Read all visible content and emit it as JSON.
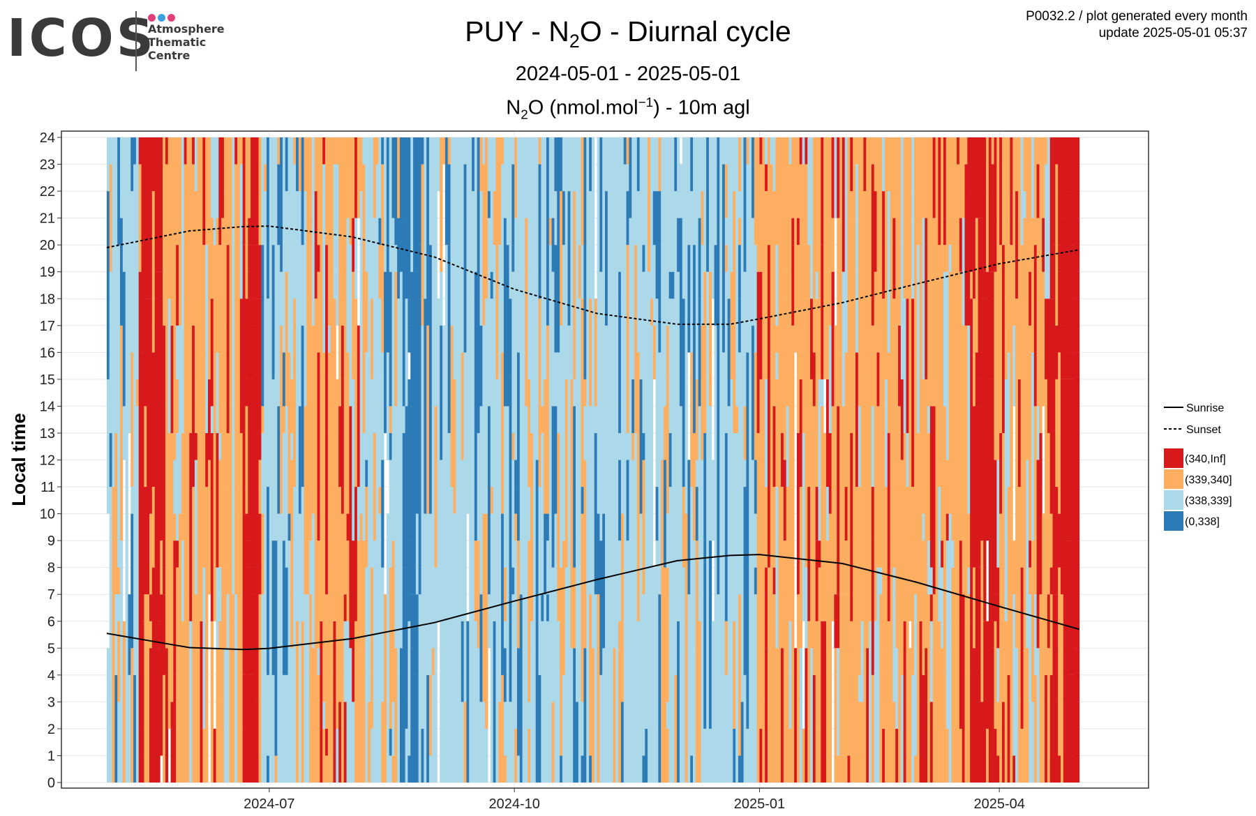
{
  "logo": {
    "text": "ICOS",
    "lines": [
      "Atmosphere",
      "Thematic",
      "Centre"
    ],
    "dot_colors": [
      "#e0407a",
      "#3aa0e0",
      "#e0407a"
    ]
  },
  "meta": {
    "line1": "P0032.2 / plot generated every month",
    "line2": "update  2025-05-01 05:37"
  },
  "title": {
    "pre": "PUY - N",
    "sub": "2",
    "post": "O - Diurnal cycle"
  },
  "date_range": "2024-05-01 - 2025-05-01",
  "subtitle": {
    "pre": "N",
    "sub": "2",
    "mid": "O (nmol.mol",
    "sup": "−1",
    "post": ") - 10m agl"
  },
  "chart_data": {
    "type": "heatmap",
    "ylabel": "Local time",
    "xlabel": "",
    "x_range": [
      "2024-05-01",
      "2025-05-01"
    ],
    "ylim": [
      0,
      24
    ],
    "y_ticks": [
      0,
      1,
      2,
      3,
      4,
      5,
      6,
      7,
      8,
      9,
      10,
      11,
      12,
      13,
      14,
      15,
      16,
      17,
      18,
      19,
      20,
      21,
      22,
      23,
      24
    ],
    "x_ticks": [
      {
        "date": "2024-07-01",
        "label": "2024-07"
      },
      {
        "date": "2024-10-01",
        "label": "2024-10"
      },
      {
        "date": "2025-01-01",
        "label": "2025-01"
      },
      {
        "date": "2025-04-01",
        "label": "2025-04"
      }
    ],
    "grid": true,
    "legend_position": "right",
    "legend": [
      {
        "type": "line",
        "label": "Sunrise",
        "style": "solid"
      },
      {
        "type": "line",
        "label": "Sunset",
        "style": "dashed"
      },
      {
        "type": "fill",
        "label": "(340,Inf]",
        "color": "#d7191c"
      },
      {
        "type": "fill",
        "label": "(339,340]",
        "color": "#fdae61"
      },
      {
        "type": "fill",
        "label": "(338,339]",
        "color": "#abd9e9"
      },
      {
        "type": "fill",
        "label": "(0,338]",
        "color": "#2c7bb6"
      }
    ],
    "sunrise": {
      "dates": [
        "2024-05-01",
        "2024-06-01",
        "2024-06-21",
        "2024-07-01",
        "2024-08-01",
        "2024-09-01",
        "2024-10-01",
        "2024-11-01",
        "2024-12-01",
        "2024-12-21",
        "2025-01-01",
        "2025-02-01",
        "2025-03-01",
        "2025-04-01",
        "2025-05-01"
      ],
      "values": [
        5.55,
        5.02,
        4.95,
        4.99,
        5.35,
        5.95,
        6.75,
        7.55,
        8.25,
        8.45,
        8.48,
        8.15,
        7.45,
        6.55,
        5.7
      ]
    },
    "sunset": {
      "dates": [
        "2024-05-01",
        "2024-06-01",
        "2024-06-21",
        "2024-07-01",
        "2024-08-01",
        "2024-09-01",
        "2024-10-01",
        "2024-11-01",
        "2024-12-01",
        "2024-12-21",
        "2025-01-01",
        "2025-02-01",
        "2025-03-01",
        "2025-04-01",
        "2025-05-01"
      ],
      "values": [
        19.9,
        20.52,
        20.68,
        20.7,
        20.3,
        19.55,
        18.35,
        17.45,
        17.05,
        17.05,
        17.25,
        17.85,
        18.55,
        19.3,
        19.82
      ]
    },
    "day_class_segments": [
      {
        "start": "2024-05-01",
        "end": "2024-05-13",
        "dominant": "(338,339]"
      },
      {
        "start": "2024-05-13",
        "end": "2024-05-23",
        "dominant": "(340,Inf]"
      },
      {
        "start": "2024-05-23",
        "end": "2024-06-21",
        "dominant": "(339,340]"
      },
      {
        "start": "2024-06-21",
        "end": "2024-06-28",
        "dominant": "(340,Inf]"
      },
      {
        "start": "2024-06-28",
        "end": "2024-07-15",
        "dominant": "(338,339]"
      },
      {
        "start": "2024-07-15",
        "end": "2024-08-06",
        "dominant": "(339,340]"
      },
      {
        "start": "2024-08-06",
        "end": "2024-08-20",
        "dominant": "(338,339]"
      },
      {
        "start": "2024-08-20",
        "end": "2024-08-27",
        "dominant": "(0,338]"
      },
      {
        "start": "2024-08-27",
        "end": "2024-09-20",
        "dominant": "(338,339]"
      },
      {
        "start": "2024-09-20",
        "end": "2024-12-01",
        "dominant": "(338,339]"
      },
      {
        "start": "2024-12-01",
        "end": "2024-12-31",
        "dominant": "(338,339]"
      },
      {
        "start": "2024-12-31",
        "end": "2025-01-31",
        "dominant": "(339,340]"
      },
      {
        "start": "2025-01-31",
        "end": "2025-03-21",
        "dominant": "(339,340]"
      },
      {
        "start": "2025-03-21",
        "end": "2025-03-31",
        "dominant": "(340,Inf]"
      },
      {
        "start": "2025-03-31",
        "end": "2025-04-20",
        "dominant": "(339,340]"
      },
      {
        "start": "2025-04-20",
        "end": "2025-05-01",
        "dominant": "(340,Inf]"
      }
    ]
  }
}
